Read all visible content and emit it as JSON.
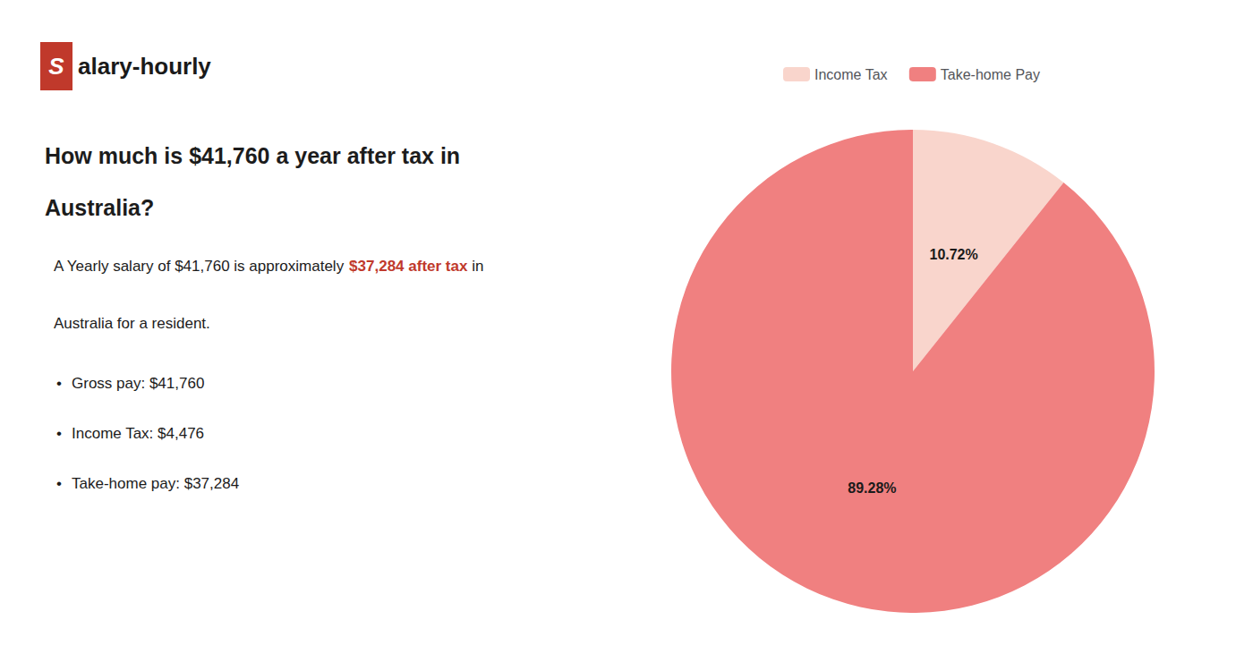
{
  "chart_data": {
    "type": "pie",
    "title": "How much is $41,760 a year after tax in\nAustralia?",
    "annotations": [
      [
        {
          "text": "S",
          "color": "#c0392b"
        },
        {
          "text": "alary-hourly"
        }
      ],
      [
        {
          "text": "A Yearly salary of $41,760 is approximately "
        },
        {
          "text": "$37,284 after tax",
          "color": "#c0392b"
        },
        {
          "text": " in"
        }
      ],
      [
        {
          "text": "Australia for a resident."
        }
      ],
      [
        {
          "text": "•"
        },
        {
          "text": "Gross pay: $41,760"
        }
      ],
      [
        {
          "text": "•"
        },
        {
          "text": "Income Tax: $4,476"
        }
      ],
      [
        {
          "text": "•"
        },
        {
          "text": "Take-home pay: $37,284"
        }
      ]
    ],
    "categories": [
      "Income Tax",
      "Take-home Pay"
    ],
    "values": [
      10.72,
      89.28
    ],
    "value_labels": [
      "10.72%",
      "89.28%"
    ],
    "colors": [
      "#f9d5cc",
      "#f08080"
    ],
    "data_labels": true,
    "legend": "top"
  }
}
